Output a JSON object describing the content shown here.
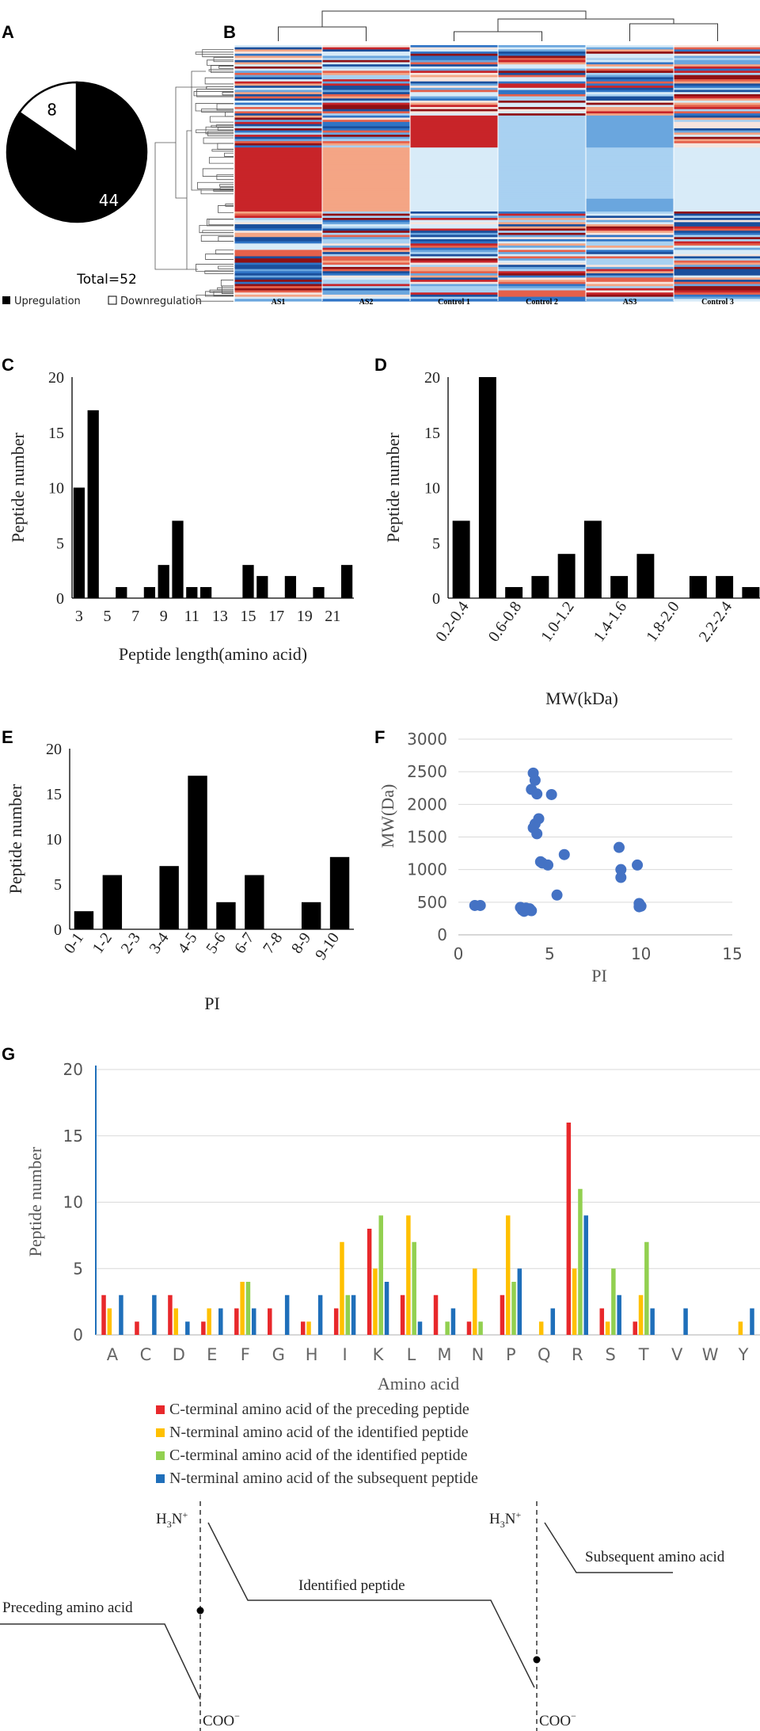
{
  "panel_labels": [
    "A",
    "B",
    "C",
    "D",
    "E",
    "F",
    "G"
  ],
  "chart_data": [
    {
      "panel": "A",
      "type": "pie",
      "slices": [
        {
          "label": "Upregulation",
          "value": 44,
          "color": "#000000"
        },
        {
          "label": "Downregulation",
          "value": 8,
          "color": "#ffffff"
        }
      ],
      "total_text": "Total=52",
      "legend": [
        "Upregulation",
        "Downregulation"
      ]
    },
    {
      "panel": "B",
      "type": "heatmap",
      "columns": [
        "AS1",
        "AS2",
        "Control 1",
        "Control 2",
        "AS3",
        "Control 3"
      ]
    },
    {
      "panel": "C",
      "type": "bar",
      "categories": [
        "3",
        "4",
        "5",
        "6",
        "7",
        "8",
        "9",
        "10",
        "11",
        "12",
        "13",
        "14",
        "15",
        "16",
        "17",
        "18",
        "19",
        "20",
        "21",
        "22"
      ],
      "tick_labels": [
        "3",
        "5",
        "7",
        "9",
        "11",
        "13",
        "15",
        "17",
        "19",
        "21"
      ],
      "values": [
        10,
        17,
        0,
        1,
        0,
        1,
        3,
        7,
        1,
        1,
        0,
        0,
        3,
        2,
        0,
        2,
        0,
        1,
        0,
        3
      ],
      "xlabel": "Peptide length(amino acid)",
      "ylabel": "Peptide number",
      "ylim": [
        0,
        20
      ],
      "yticks": [
        0,
        5,
        10,
        15,
        20
      ]
    },
    {
      "panel": "D",
      "type": "bar",
      "categories": [
        "0.2-0.4",
        "0.4-0.6",
        "0.6-0.8",
        "0.8-1.0",
        "1.0-1.2",
        "1.2-1.4",
        "1.4-1.6",
        "1.6-1.8",
        "1.8-2.0",
        "2.0-2.2",
        "2.2-2.4",
        "2.4-2.6"
      ],
      "tick_labels": [
        "0.2-0.4",
        "0.6-0.8",
        "1.0-1.2",
        "1.4-1.6",
        "1.8-2.0",
        "2.2-2.4"
      ],
      "values": [
        7,
        20,
        1,
        2,
        4,
        7,
        2,
        4,
        0,
        2,
        2,
        1
      ],
      "xlabel": "MW(kDa)",
      "ylabel": "Peptide number",
      "ylim": [
        0,
        20
      ],
      "yticks": [
        0,
        5,
        10,
        15,
        20
      ]
    },
    {
      "panel": "E",
      "type": "bar",
      "categories": [
        "0-1",
        "1-2",
        "2-3",
        "3-4",
        "4-5",
        "5-6",
        "6-7",
        "7-8",
        "8-9",
        "9-10"
      ],
      "values": [
        2,
        6,
        0,
        7,
        17,
        3,
        6,
        0,
        3,
        8
      ],
      "xlabel": "PI",
      "ylabel": "Peptide number",
      "ylim": [
        0,
        20
      ],
      "yticks": [
        0,
        5,
        10,
        15,
        20
      ]
    },
    {
      "panel": "F",
      "type": "scatter",
      "x": [
        0.9,
        1.2,
        3.4,
        3.5,
        3.6,
        3.7,
        3.9,
        3.9,
        4.0,
        4.1,
        4.2,
        4.3,
        4.4,
        4.2,
        4.1,
        4.3,
        4.0,
        4.5,
        4.6,
        4.9,
        5.1,
        5.4,
        5.8,
        8.8,
        8.9,
        8.9,
        9.8,
        9.9,
        10.0,
        9.9
      ],
      "y": [
        450,
        450,
        420,
        380,
        360,
        410,
        400,
        380,
        370,
        2480,
        2370,
        2160,
        1780,
        1700,
        1640,
        1550,
        2230,
        1120,
        1100,
        1070,
        2150,
        610,
        1230,
        1340,
        1000,
        880,
        1070,
        480,
        440,
        430
      ],
      "xlabel": "PI",
      "ylabel": "MW(Da)",
      "xlim": [
        0,
        15
      ],
      "ylim": [
        0,
        3000
      ],
      "xticks": [
        0,
        5,
        10,
        15
      ],
      "yticks": [
        0,
        500,
        1000,
        1500,
        2000,
        2500,
        3000
      ],
      "color": "#4472c4"
    },
    {
      "panel": "G",
      "type": "bar",
      "categories": [
        "A",
        "C",
        "D",
        "E",
        "F",
        "G",
        "H",
        "I",
        "K",
        "L",
        "M",
        "N",
        "P",
        "Q",
        "R",
        "S",
        "T",
        "V",
        "W",
        "Y"
      ],
      "series": [
        {
          "name": "C-terminal amino acid of the preceding peptide",
          "color": "#e8282b",
          "values": [
            3,
            1,
            3,
            1,
            2,
            2,
            1,
            2,
            8,
            3,
            3,
            1,
            3,
            0,
            16,
            2,
            1,
            0,
            0,
            0
          ]
        },
        {
          "name": "N-terminal amino acid of the identified peptide",
          "color": "#ffc000",
          "values": [
            2,
            0,
            2,
            2,
            4,
            0,
            1,
            7,
            5,
            9,
            0,
            5,
            9,
            1,
            5,
            1,
            3,
            0,
            0,
            1
          ]
        },
        {
          "name": "C-terminal amino acid of the identified peptide",
          "color": "#92d050",
          "values": [
            0,
            0,
            0,
            0,
            4,
            0,
            0,
            3,
            9,
            7,
            1,
            1,
            4,
            0,
            11,
            5,
            7,
            0,
            0,
            0
          ]
        },
        {
          "name": "N-terminal amino acid of the subsequent peptide",
          "color": "#1f6fba",
          "values": [
            3,
            3,
            1,
            2,
            2,
            3,
            3,
            3,
            4,
            1,
            2,
            0,
            5,
            2,
            9,
            3,
            2,
            2,
            0,
            2
          ]
        }
      ],
      "xlabel": "Amino acid",
      "ylabel": "Peptide number",
      "ylim": [
        0,
        20
      ],
      "yticks": [
        0,
        5,
        10,
        15,
        20
      ]
    }
  ],
  "diagram": {
    "h3n": "H",
    "h3n_sub": "3",
    "h3n_rest": "N",
    "h3n_sup": "+",
    "coo": "COO",
    "coo_sup": "−",
    "preceding": "Preceding amino acid",
    "identified": "Identified peptide",
    "subsequent": "Subsequent amino acid"
  }
}
